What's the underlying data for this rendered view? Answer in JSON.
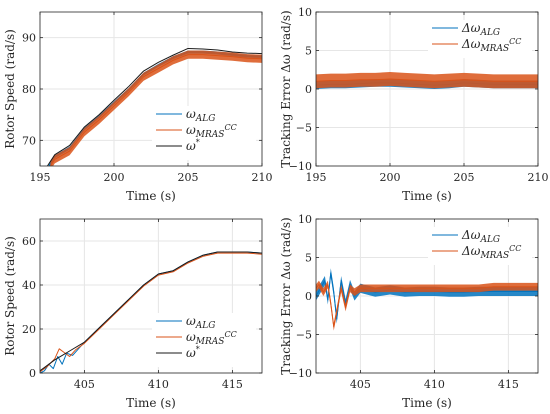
{
  "chart_data": [
    {
      "type": "line",
      "xlabel": "Time (s)",
      "ylabel": "Rotor Speed (rad/s)",
      "xlim": [
        195,
        210
      ],
      "ylim": [
        65,
        95
      ],
      "xticks": [
        195,
        200,
        205,
        210
      ],
      "yticks": [
        70,
        80,
        90
      ],
      "grid": true,
      "legend_position": "bottom-right",
      "series": [
        {
          "name": "ω_ALG",
          "legend_main": "ω",
          "legend_sub": "ALG",
          "legend_sup": "",
          "color": "#0072bd",
          "band": 0.3,
          "x": [
            195.6,
            196,
            197,
            198,
            199,
            200,
            201,
            202,
            203,
            204,
            205,
            206,
            207,
            208,
            209,
            210
          ],
          "y": [
            65,
            66.8,
            68.5,
            72.2,
            74.6,
            77.3,
            79.9,
            82.9,
            84.6,
            86.1,
            87.2,
            87.2,
            87.0,
            86.7,
            86.4,
            86.3
          ]
        },
        {
          "name": "ω_MRAS^CC",
          "legend_main": "ω",
          "legend_sub": "MRAS",
          "legend_sup": "CC",
          "color": "#d95319",
          "band": 0.8,
          "x": [
            195.7,
            196,
            197,
            198,
            199,
            200,
            201,
            202,
            203,
            204,
            205,
            206,
            207,
            208,
            209,
            210
          ],
          "y": [
            65,
            66.3,
            67.9,
            71.6,
            74.0,
            76.7,
            79.4,
            82.4,
            84.0,
            85.6,
            86.7,
            86.7,
            86.5,
            86.3,
            86.0,
            85.9
          ]
        },
        {
          "name": "ω*",
          "legend_main": "ω",
          "legend_sub": "",
          "legend_sup": "*",
          "color": "#1a1a1a",
          "band": 0,
          "x": [
            195.5,
            196,
            197,
            198,
            199,
            200,
            201,
            202,
            203,
            204,
            205,
            206,
            207,
            208,
            209,
            210
          ],
          "y": [
            65,
            67.2,
            69.0,
            72.6,
            75.0,
            77.8,
            80.5,
            83.5,
            85.2,
            86.6,
            87.9,
            87.8,
            87.6,
            87.2,
            87.0,
            86.9
          ]
        }
      ]
    },
    {
      "type": "line",
      "xlabel": "Time (s)",
      "ylabel": "Tracking Error Δω (rad/s)",
      "xlim": [
        195,
        210
      ],
      "ylim": [
        -10,
        10
      ],
      "xticks": [
        195,
        200,
        205,
        210
      ],
      "yticks": [
        -10,
        -5,
        0,
        5,
        10
      ],
      "grid": true,
      "legend_position": "top-right",
      "series": [
        {
          "name": "Δω_ALG",
          "legend_main": "Δω",
          "legend_sub": "ALG",
          "legend_sup": "",
          "color": "#0072bd",
          "band": 0.5,
          "x": [
            195,
            196,
            197,
            198,
            199,
            200,
            201,
            202,
            203,
            204,
            205,
            206,
            207,
            208,
            209,
            210
          ],
          "y": [
            0.5,
            0.6,
            0.6,
            0.7,
            0.8,
            0.8,
            0.7,
            0.6,
            0.5,
            0.6,
            0.8,
            0.7,
            0.6,
            0.6,
            0.6,
            0.6
          ]
        },
        {
          "name": "Δω_MRAS^CC",
          "legend_main": "Δω",
          "legend_sub": "MRAS",
          "legend_sup": "CC",
          "color": "#d95319",
          "band": 0.9,
          "x": [
            195,
            196,
            197,
            198,
            199,
            200,
            201,
            202,
            203,
            204,
            205,
            206,
            207,
            208,
            209,
            210
          ],
          "y": [
            1.0,
            1.1,
            1.1,
            1.2,
            1.2,
            1.3,
            1.2,
            1.1,
            1.0,
            1.1,
            1.2,
            1.1,
            1.0,
            1.0,
            1.0,
            1.0
          ]
        }
      ]
    },
    {
      "type": "line",
      "xlabel": "Time (s)",
      "ylabel": "Rotor Speed (rad/s)",
      "xlim": [
        402,
        417
      ],
      "ylim": [
        0,
        70
      ],
      "xticks": [
        405,
        410,
        415
      ],
      "yticks": [
        0,
        20,
        40,
        60
      ],
      "grid": true,
      "legend_position": "bottom-right",
      "series": [
        {
          "name": "ω_ALG",
          "legend_main": "ω",
          "legend_sub": "ALG",
          "legend_sup": "",
          "color": "#0072bd",
          "band": 0,
          "x": [
            402,
            402.3,
            402.6,
            402.9,
            403.2,
            403.5,
            403.8,
            404.2,
            405,
            406,
            407,
            408,
            409,
            410,
            411,
            412,
            413,
            414,
            415,
            416,
            417
          ],
          "y": [
            0,
            1.0,
            4.0,
            2.0,
            7.5,
            4.0,
            9.0,
            8.0,
            14.0,
            20.5,
            27.0,
            33.5,
            40.0,
            45.0,
            46.5,
            50.5,
            53.5,
            55.0,
            55.0,
            55.0,
            54.5
          ]
        },
        {
          "name": "ω_MRAS^CC",
          "legend_main": "ω",
          "legend_sub": "MRAS",
          "legend_sup": "CC",
          "color": "#d95319",
          "band": 0,
          "x": [
            402,
            402.5,
            403.0,
            403.3,
            403.6,
            404.0,
            404.4,
            405,
            406,
            407,
            408,
            409,
            410,
            411,
            412,
            413,
            414,
            415,
            416,
            417
          ],
          "y": [
            0.5,
            3.0,
            6.5,
            11.0,
            9.5,
            7.5,
            10.5,
            13.5,
            20.0,
            26.5,
            33.0,
            39.5,
            44.5,
            46.0,
            50.0,
            53.0,
            54.5,
            54.5,
            54.5,
            54.0
          ]
        },
        {
          "name": "ω*",
          "legend_main": "ω",
          "legend_sub": "",
          "legend_sup": "*",
          "color": "#1a1a1a",
          "band": 0,
          "x": [
            402,
            402.5,
            403,
            403.5,
            404,
            405,
            406,
            407,
            408,
            409,
            410,
            411,
            412,
            413,
            414,
            415,
            416,
            417
          ],
          "y": [
            1.0,
            3.5,
            6.0,
            8.0,
            10.0,
            14.0,
            20.5,
            27.0,
            33.5,
            40.0,
            45.0,
            46.5,
            50.5,
            53.5,
            55.0,
            55.0,
            55.0,
            54.5
          ]
        }
      ]
    },
    {
      "type": "line",
      "xlabel": "Time (s)",
      "ylabel": "Tracking Error Δω (rad/s)",
      "xlim": [
        402,
        417
      ],
      "ylim": [
        -10,
        10
      ],
      "xticks": [
        405,
        410,
        415
      ],
      "yticks": [
        -10,
        -5,
        0,
        5,
        10
      ],
      "grid": true,
      "legend_position": "top-right",
      "series": [
        {
          "name": "Δω_ALG",
          "legend_main": "Δω",
          "legend_sub": "ALG",
          "legend_sup": "",
          "color": "#0072bd",
          "band": 0.6,
          "x": [
            402,
            402.3,
            402.6,
            402.8,
            403.0,
            403.2,
            403.4,
            403.7,
            404.0,
            404.3,
            404.6,
            405,
            406,
            407,
            408,
            409,
            410,
            411,
            412,
            413,
            414,
            415,
            416,
            417
          ],
          "y": [
            0.0,
            1.0,
            2.0,
            -0.5,
            3.0,
            0.5,
            -3.0,
            2.0,
            -1.0,
            1.5,
            0.0,
            1.0,
            0.5,
            0.8,
            0.5,
            0.6,
            0.6,
            0.5,
            0.5,
            0.6,
            0.6,
            0.6,
            0.6,
            0.6
          ]
        },
        {
          "name": "Δω_MRAS^CC",
          "legend_main": "Δω",
          "legend_sub": "MRAS",
          "legend_sup": "CC",
          "color": "#d95319",
          "band": 0.5,
          "x": [
            402,
            402.2,
            402.5,
            402.8,
            403.0,
            403.2,
            403.4,
            403.7,
            404.0,
            404.3,
            404.6,
            405,
            406,
            407,
            408,
            409,
            410,
            411,
            412,
            413,
            414,
            415,
            416,
            417
          ],
          "y": [
            1.0,
            1.5,
            0.5,
            1.5,
            -1.0,
            -4.0,
            -2.0,
            1.0,
            -1.5,
            1.0,
            0.5,
            1.0,
            1.0,
            1.0,
            1.0,
            1.0,
            1.0,
            1.0,
            1.0,
            1.0,
            1.2,
            1.2,
            1.2,
            1.2
          ]
        }
      ]
    }
  ]
}
